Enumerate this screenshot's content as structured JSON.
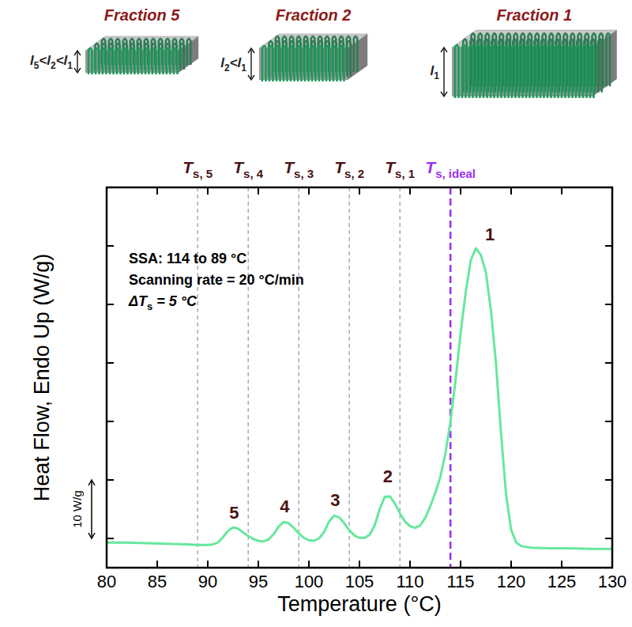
{
  "chart_data": {
    "type": "line",
    "x_label": "Temperature (°C)",
    "y_label": "Heat Flow, Endo Up (W/g)",
    "xlim": [
      80,
      130
    ],
    "xticks": [
      80,
      85,
      90,
      95,
      100,
      105,
      110,
      115,
      120,
      125,
      130
    ],
    "ylim": [
      0,
      65
    ],
    "yticks": [
      5,
      15,
      25,
      35,
      45,
      55
    ],
    "tick_labels": "x",
    "color": "#66e89c",
    "x": [
      80,
      82,
      84,
      86,
      88,
      89,
      90,
      90.5,
      91,
      91.5,
      92,
      92.5,
      93,
      93.5,
      94,
      94.5,
      95,
      95.5,
      96,
      96.5,
      97,
      97.5,
      98,
      98.5,
      99,
      99.5,
      100,
      100.5,
      101,
      101.5,
      102,
      102.5,
      103,
      103.5,
      104,
      104.5,
      105,
      105.5,
      106,
      106.5,
      107,
      107.5,
      108,
      108.5,
      109,
      109.5,
      110,
      110.5,
      111,
      111.5,
      112,
      112.5,
      113,
      113.5,
      114,
      114.5,
      115,
      115.5,
      116,
      116.5,
      117,
      117.5,
      118,
      118.5,
      119,
      119.5,
      120,
      120.5,
      121,
      122,
      124,
      126,
      128,
      130
    ],
    "values": [
      4.3,
      4.3,
      4.2,
      4.1,
      4.0,
      3.9,
      3.9,
      4.0,
      4.3,
      5.2,
      6.3,
      6.9,
      6.7,
      6.0,
      5.4,
      4.9,
      4.6,
      4.5,
      4.8,
      5.7,
      7.0,
      7.8,
      7.6,
      6.8,
      5.9,
      5.1,
      4.7,
      4.6,
      5.0,
      6.1,
      7.9,
      8.9,
      8.6,
      7.6,
      6.4,
      5.5,
      5.1,
      5.1,
      5.6,
      7.2,
      10.0,
      12.1,
      12.2,
      11.0,
      9.3,
      7.9,
      7.1,
      6.8,
      7.2,
      8.5,
      10.5,
      12.8,
      15.5,
      19.5,
      25,
      32,
      40,
      47,
      52.5,
      54.6,
      53.5,
      50.5,
      44,
      35,
      23,
      12.5,
      6.5,
      4.3,
      3.7,
      3.4,
      3.3,
      3.3,
      3.2,
      3.2
    ],
    "scale_bar": {
      "from": 5,
      "to": 15,
      "label": "10 W/g"
    },
    "info_box": [
      "SSA: 114 to 89 °C",
      "Scanning rate = 20 °C/min",
      [
        "ΔT",
        "s",
        " = 5 °C"
      ]
    ],
    "peak_labels": [
      {
        "text": "5",
        "x": 92.6,
        "y": 9.5
      },
      {
        "text": "4",
        "x": 97.6,
        "y": 10.6
      },
      {
        "text": "3",
        "x": 102.6,
        "y": 11.6
      },
      {
        "text": "2",
        "x": 107.8,
        "y": 15.7
      },
      {
        "text": "1",
        "x": 117.9,
        "y": 57
      }
    ],
    "self_seeding_lines": [
      {
        "x": 89,
        "label": [
          "T",
          "s, 5"
        ],
        "color": "#8c99a3"
      },
      {
        "x": 94,
        "label": [
          "T",
          "s, 4"
        ],
        "color": "#8c99a3"
      },
      {
        "x": 99,
        "label": [
          "T",
          "s, 3"
        ],
        "color": "#8c99a3"
      },
      {
        "x": 104,
        "label": [
          "T",
          "s, 2"
        ],
        "color": "#8c99a3"
      },
      {
        "x": 109,
        "label": [
          "T",
          "s, 1"
        ],
        "color": "#8c99a3"
      },
      {
        "x": 114,
        "label": [
          "T",
          "s, ideal"
        ],
        "color": "#9b30f0"
      }
    ],
    "illustration": [
      {
        "title": "Fraction 5",
        "thickness_label": [
          "l",
          "5",
          "<l",
          "2",
          "<l",
          "1"
        ]
      },
      {
        "title": "Fraction 2",
        "thickness_label": [
          "l",
          "2",
          "<l",
          "1"
        ]
      },
      {
        "title": "Fraction 1",
        "thickness_label": [
          "l",
          "1"
        ]
      }
    ]
  }
}
